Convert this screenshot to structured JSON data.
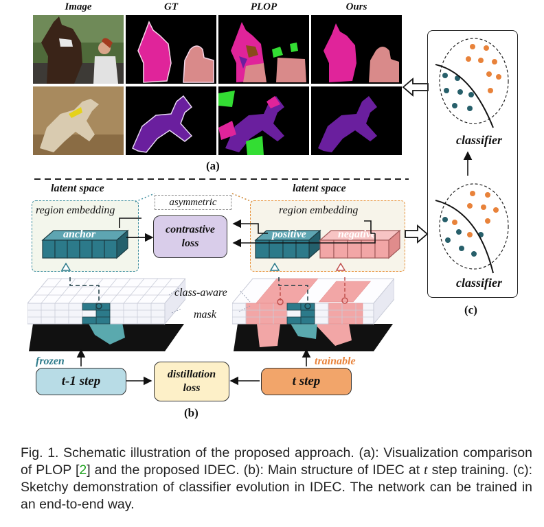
{
  "panel_a": {
    "headers": [
      "Image",
      "GT",
      "PLOP",
      "Ours"
    ],
    "label": "(a)"
  },
  "panel_b": {
    "latent_left": "latent space",
    "latent_right": "latent space",
    "region_embedding_left": "region embedding",
    "region_embedding_right": "region embedding",
    "asymmetric": "asymmetric",
    "anchor": "anchor",
    "positive": "positive",
    "negative": "negative",
    "contrastive_loss_1": "contrastive",
    "contrastive_loss_2": "loss",
    "class_aware": "class-aware",
    "mask": "mask",
    "frozen": "frozen",
    "trainable": "trainable",
    "t1_step": "t-1 step",
    "t_step": "t step",
    "distillation_1": "distillation",
    "distillation_2": "loss",
    "label": "(b)"
  },
  "panel_c": {
    "classifier_top": "classifier",
    "classifier_bottom": "classifier",
    "label": "(c)"
  },
  "caption": {
    "part1": "Fig. 1. Schematic illustration of the proposed approach. (a): Visualization comparison of PLOP [",
    "cite": "2",
    "part2": "] and the proposed IDEC. (b): Main structure of IDEC at ",
    "t": "t",
    "part3": " step training. (c): Sketchy demonstration of classifier evolution in IDEC. The network can be trained in an end-to-end way."
  },
  "colors": {
    "teal": "#2c7a8a",
    "pink": "#f2a6a6",
    "orange": "#e8823a",
    "magenta": "#e0249a",
    "purple": "#6a1f9e",
    "green": "#33dd33"
  }
}
